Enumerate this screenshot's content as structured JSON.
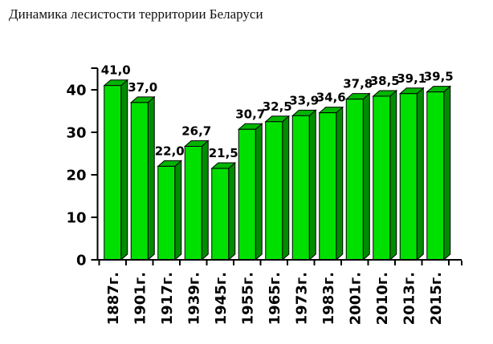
{
  "page": {
    "title": "Динамика лесистости территории Беларуси"
  },
  "chart_data": {
    "type": "bar",
    "style": "3d-column",
    "title": "Динамика лесистости территории Беларуси",
    "categories": [
      "1887г.",
      "1901г.",
      "1917г.",
      "1939г.",
      "1945г.",
      "1955г.",
      "1965г.",
      "1973г.",
      "1983г.",
      "2001г.",
      "2010г.",
      "2013г.",
      "2015г."
    ],
    "values": [
      41.0,
      37.0,
      22.0,
      26.7,
      21.5,
      30.7,
      32.5,
      33.9,
      34.6,
      37.8,
      38.5,
      39.1,
      39.5
    ],
    "value_labels": [
      "41,0",
      "37,0",
      "22,0",
      "26,7",
      "21,5",
      "30,7",
      "32,5",
      "33,9",
      "34,6",
      "37,8",
      "38,5",
      "39,1",
      "39,5"
    ],
    "xlabel": "",
    "ylabel": "",
    "ylim": [
      0,
      45
    ],
    "yticks": [
      0,
      10,
      20,
      30,
      40
    ],
    "ytick_labels": [
      "0",
      "10",
      "20",
      "30",
      "40"
    ],
    "grid": false,
    "legend": "none",
    "colors": {
      "bar_front": "#00E000",
      "bar_top": "#00B400",
      "bar_side": "#008C00",
      "bar_outline": "#000000",
      "axis": "#000000",
      "text": "#000000",
      "background": "#FFFFFF"
    }
  }
}
